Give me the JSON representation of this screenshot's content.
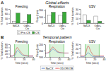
{
  "sections": [
    {
      "label": "A",
      "title": "Global effects"
    },
    {
      "label": "B",
      "title": "Temporal pattern"
    }
  ],
  "chart_data": [
    {
      "type": "bar",
      "title": "Freezing",
      "categories": [
        "NoCX",
        "Odor+\nCtx"
      ],
      "series": [
        {
          "name": "Pre-CS",
          "color": "#ffffff",
          "values": [
            12,
            10
          ]
        },
        {
          "name": "CS",
          "color": "#3aaa3a",
          "values": [
            65,
            55
          ]
        }
      ],
      "y_label": "% Total duration",
      "ylim": [
        0,
        90
      ],
      "yticks": [
        0,
        30,
        60,
        90
      ],
      "legend": "bottom"
    },
    {
      "type": "bar",
      "title": "Respiration",
      "categories": [
        "NoCX",
        "Odor+\nCtx"
      ],
      "series": [
        {
          "color": "#ffffff",
          "values": [
            130,
            128
          ]
        },
        {
          "color": "#3aaa3a",
          "values": [
            170,
            175
          ]
        }
      ],
      "y_label": "Resp (rpm)",
      "ylim": [
        0,
        220
      ],
      "yticks": [
        0,
        100,
        200
      ]
    },
    {
      "type": "bar",
      "title": "USV",
      "categories": [
        "NoCX",
        "Odor+\nCtx"
      ],
      "series": [
        {
          "color": "#ffffff",
          "values": [
            18,
            15
          ]
        },
        {
          "color": "#3aaa3a",
          "values": [
            6,
            4
          ]
        }
      ],
      "y_label": "% Total duration",
      "ylim": [
        0,
        30
      ],
      "yticks": [
        0,
        10,
        20,
        30
      ]
    },
    {
      "type": "line",
      "title": "Freezing",
      "x": [
        -10,
        -8.9796,
        -7.9592,
        -6.9388,
        -5.9184,
        -4.898,
        -3.8776,
        -2.8571,
        -1.8367,
        -0.8163,
        0.2041,
        1.2245,
        2.2449,
        3.2653,
        4.2857,
        5.3061,
        6.3265,
        7.3469,
        8.3673,
        9.3878,
        10.4082,
        11.4286,
        12.449,
        13.4694,
        14.4898,
        15.5102,
        16.5306,
        17.551,
        18.5714,
        19.5918,
        20.6122,
        21.6327,
        22.6531,
        23.6735,
        24.6939,
        25.7143,
        26.7347,
        27.7551,
        28.7755,
        29.7959,
        30.8163,
        31.8367,
        32.8571,
        33.8776,
        34.898,
        35.9184,
        36.9388,
        37.9592,
        38.9796,
        40
      ],
      "series": [
        {
          "name": "NoCX",
          "color": "#4472c4",
          "values": [
            5,
            5,
            5,
            5,
            5,
            5,
            5,
            6,
            6,
            6,
            8,
            12,
            18,
            25,
            32,
            38,
            40,
            39,
            37,
            34,
            30,
            26,
            22,
            19,
            16,
            13,
            11,
            10,
            9,
            8,
            7,
            7,
            6,
            6,
            6,
            5,
            5,
            5,
            5,
            5,
            5,
            5,
            5,
            5,
            5,
            5,
            5,
            5,
            5,
            5
          ]
        },
        {
          "name": "ODOR/OB",
          "color": "#d94040",
          "values": [
            5,
            5,
            5,
            5,
            5,
            5,
            6,
            7,
            10,
            14,
            20,
            28,
            38,
            48,
            55,
            60,
            58,
            54,
            50,
            46,
            42,
            38,
            34,
            30,
            26,
            22,
            19,
            16,
            14,
            12,
            10,
            9,
            8,
            8,
            7,
            7,
            6,
            6,
            6,
            5,
            5,
            5,
            5,
            5,
            5,
            5,
            5,
            5,
            5,
            5
          ]
        }
      ],
      "cs_span": [
        0,
        30
      ],
      "x_label": "Time (secs)",
      "y_label": "% Total duration",
      "xlim": [
        -10,
        40
      ],
      "xticks": [
        0,
        20,
        40
      ],
      "ylim": [
        0,
        80
      ],
      "yticks": [
        0,
        20,
        40,
        60,
        80
      ],
      "legend": "bottom"
    },
    {
      "type": "line",
      "title": "Respiration",
      "x": [
        -10,
        -8.9796,
        -7.9592,
        -6.9388,
        -5.9184,
        -4.898,
        -3.8776,
        -2.8571,
        -1.8367,
        -0.8163,
        0.2041,
        1.2245,
        2.2449,
        3.2653,
        4.2857,
        5.3061,
        6.3265,
        7.3469,
        8.3673,
        9.3878,
        10.4082,
        11.4286,
        12.449,
        13.4694,
        14.4898,
        15.5102,
        16.5306,
        17.551,
        18.5714,
        19.5918,
        20.6122,
        21.6327,
        22.6531,
        23.6735,
        24.6939,
        25.7143,
        26.7347,
        27.7551,
        28.7755,
        29.7959,
        30.8163,
        31.8367,
        32.8571,
        33.8776,
        34.898,
        35.9184,
        36.9388,
        37.9592,
        38.9796,
        40
      ],
      "series": [
        {
          "color": "#4472c4",
          "values": [
            128,
            128,
            129,
            129,
            130,
            130,
            131,
            132,
            133,
            135,
            138,
            142,
            147,
            152,
            157,
            160,
            162,
            161,
            159,
            156,
            153,
            150,
            147,
            144,
            141,
            139,
            137,
            136,
            135,
            134,
            133,
            133,
            132,
            132,
            132,
            131,
            131,
            131,
            130,
            130,
            130,
            130,
            130,
            130,
            130,
            130,
            130,
            130,
            130,
            130
          ]
        },
        {
          "color": "#d94040",
          "values": [
            130,
            130,
            130,
            131,
            131,
            132,
            133,
            135,
            138,
            142,
            148,
            155,
            162,
            168,
            173,
            177,
            178,
            176,
            173,
            169,
            165,
            161,
            157,
            153,
            149,
            146,
            143,
            141,
            139,
            137,
            136,
            135,
            134,
            133,
            133,
            132,
            132,
            131,
            131,
            131,
            130,
            130,
            130,
            130,
            130,
            130,
            130,
            130,
            130,
            130
          ]
        }
      ],
      "cs_span": [
        0,
        30
      ],
      "x_label": "Time (secs)",
      "y_label": "Resp (rpm)",
      "xlim": [
        -10,
        40
      ],
      "xticks": [
        0,
        20,
        40
      ],
      "ylim": [
        100,
        200
      ],
      "yticks": [
        100,
        150,
        200
      ]
    },
    {
      "type": "line",
      "title": "USV",
      "x": [
        -10,
        -8.9796,
        -7.9592,
        -6.9388,
        -5.9184,
        -4.898,
        -3.8776,
        -2.8571,
        -1.8367,
        -0.8163,
        0.2041,
        1.2245,
        2.2449,
        3.2653,
        4.2857,
        5.3061,
        6.3265,
        7.3469,
        8.3673,
        9.3878,
        10.4082,
        11.4286,
        12.449,
        13.4694,
        14.4898,
        15.5102,
        16.5306,
        17.551,
        18.5714,
        19.5918,
        20.6122,
        21.6327,
        22.6531,
        23.6735,
        24.6939,
        25.7143,
        26.7347,
        27.7551,
        28.7755,
        29.7959,
        30.8163,
        31.8367,
        32.8571,
        33.8776,
        34.898,
        35.9184,
        36.9388,
        37.9592,
        38.9796,
        40
      ],
      "series": [
        {
          "color": "#4472c4",
          "values": [
            1,
            1,
            1,
            1,
            1,
            1,
            1,
            1,
            1,
            2,
            3,
            4,
            5,
            7,
            8,
            9,
            10,
            9,
            8,
            7,
            6,
            5,
            4,
            3,
            2,
            2,
            1,
            1,
            1,
            1,
            1,
            1,
            1,
            1,
            1,
            1,
            1,
            1,
            1,
            1,
            1,
            1,
            1,
            1,
            1,
            1,
            1,
            1,
            1,
            1
          ]
        },
        {
          "color": "#d94040",
          "values": [
            2,
            2,
            2,
            2,
            2,
            2,
            2,
            2,
            3,
            4,
            6,
            9,
            13,
            18,
            22,
            25,
            26,
            25,
            23,
            20,
            17,
            14,
            12,
            10,
            8,
            6,
            5,
            4,
            3,
            3,
            2,
            2,
            2,
            2,
            2,
            2,
            2,
            2,
            2,
            2,
            2,
            2,
            2,
            2,
            2,
            2,
            2,
            2,
            2,
            2
          ]
        }
      ],
      "cs_span": [
        0,
        30
      ],
      "x_label": "Time (secs)",
      "y_label": "% Total duration",
      "xlim": [
        -10,
        40
      ],
      "xticks": [
        0,
        20,
        40
      ],
      "ylim": [
        0,
        30
      ],
      "yticks": [
        0,
        10,
        20,
        30
      ]
    }
  ]
}
